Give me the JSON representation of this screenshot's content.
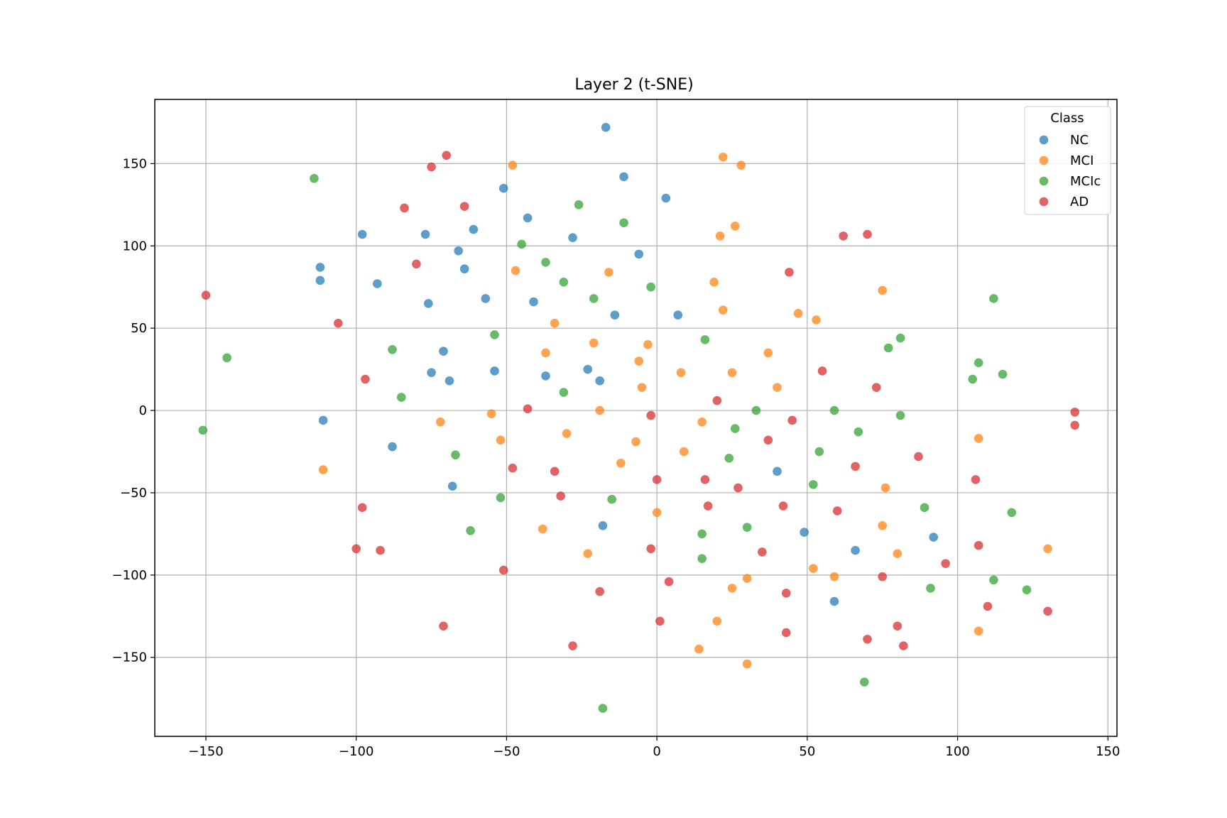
{
  "chart_data": {
    "type": "scatter",
    "title": "Layer 2 (t-SNE)",
    "xlabel": "",
    "ylabel": "",
    "xlim": [
      -167,
      153
    ],
    "ylim": [
      -198,
      189
    ],
    "xticks": [
      -150,
      -100,
      -50,
      0,
      50,
      100,
      150
    ],
    "yticks": [
      -150,
      -100,
      -50,
      0,
      50,
      100,
      150
    ],
    "xtick_labels": [
      "−150",
      "−100",
      "−50",
      "0",
      "50",
      "100",
      "150"
    ],
    "ytick_labels": [
      "−150",
      "−100",
      "−50",
      "0",
      "50",
      "100",
      "150"
    ],
    "grid": true,
    "legend": {
      "title": "Class",
      "placement": "top-right"
    },
    "series": [
      {
        "name": "NC",
        "color": "#1f77b4",
        "points": [
          [
            -17,
            172
          ],
          [
            -11,
            142
          ],
          [
            3,
            129
          ],
          [
            -51,
            135
          ],
          [
            -43,
            117
          ],
          [
            -61,
            110
          ],
          [
            -98,
            107
          ],
          [
            -77,
            107
          ],
          [
            -28,
            105
          ],
          [
            -6,
            95
          ],
          [
            -66,
            97
          ],
          [
            -112,
            87
          ],
          [
            -64,
            86
          ],
          [
            -112,
            79
          ],
          [
            -93,
            77
          ],
          [
            -57,
            68
          ],
          [
            -41,
            66
          ],
          [
            -76,
            65
          ],
          [
            -14,
            58
          ],
          [
            7,
            58
          ],
          [
            -71,
            36
          ],
          [
            -23,
            25
          ],
          [
            -54,
            24
          ],
          [
            -75,
            23
          ],
          [
            -37,
            21
          ],
          [
            -19,
            18
          ],
          [
            -69,
            18
          ],
          [
            -111,
            -6
          ],
          [
            -88,
            -22
          ],
          [
            40,
            -37
          ],
          [
            -68,
            -46
          ],
          [
            -18,
            -70
          ],
          [
            49,
            -74
          ],
          [
            66,
            -85
          ],
          [
            92,
            -77
          ],
          [
            59,
            -116
          ]
        ]
      },
      {
        "name": "MCI",
        "color": "#ff7f0e",
        "points": [
          [
            22,
            154
          ],
          [
            28,
            149
          ],
          [
            -48,
            149
          ],
          [
            26,
            112
          ],
          [
            21,
            106
          ],
          [
            -47,
            85
          ],
          [
            -16,
            84
          ],
          [
            19,
            78
          ],
          [
            75,
            73
          ],
          [
            22,
            61
          ],
          [
            47,
            59
          ],
          [
            53,
            55
          ],
          [
            -34,
            53
          ],
          [
            -21,
            41
          ],
          [
            -3,
            40
          ],
          [
            -37,
            35
          ],
          [
            37,
            35
          ],
          [
            -6,
            30
          ],
          [
            8,
            23
          ],
          [
            25,
            23
          ],
          [
            -5,
            14
          ],
          [
            40,
            14
          ],
          [
            -19,
            0
          ],
          [
            -55,
            -2
          ],
          [
            -72,
            -7
          ],
          [
            15,
            -7
          ],
          [
            -30,
            -14
          ],
          [
            -52,
            -18
          ],
          [
            -7,
            -19
          ],
          [
            107,
            -17
          ],
          [
            9,
            -25
          ],
          [
            -12,
            -32
          ],
          [
            -111,
            -36
          ],
          [
            76,
            -47
          ],
          [
            0,
            -62
          ],
          [
            -38,
            -72
          ],
          [
            75,
            -70
          ],
          [
            130,
            -84
          ],
          [
            80,
            -87
          ],
          [
            -23,
            -87
          ],
          [
            52,
            -96
          ],
          [
            59,
            -101
          ],
          [
            30,
            -102
          ],
          [
            25,
            -108
          ],
          [
            20,
            -128
          ],
          [
            107,
            -134
          ],
          [
            14,
            -145
          ],
          [
            30,
            -154
          ]
        ]
      },
      {
        "name": "MCIc",
        "color": "#2ca02c",
        "points": [
          [
            -114,
            141
          ],
          [
            -26,
            125
          ],
          [
            -11,
            114
          ],
          [
            -45,
            101
          ],
          [
            -37,
            90
          ],
          [
            -31,
            78
          ],
          [
            -2,
            75
          ],
          [
            -21,
            68
          ],
          [
            112,
            68
          ],
          [
            -54,
            46
          ],
          [
            16,
            43
          ],
          [
            81,
            44
          ],
          [
            -88,
            37
          ],
          [
            77,
            38
          ],
          [
            107,
            29
          ],
          [
            115,
            22
          ],
          [
            105,
            19
          ],
          [
            -31,
            11
          ],
          [
            -85,
            8
          ],
          [
            33,
            0
          ],
          [
            59,
            0
          ],
          [
            81,
            -3
          ],
          [
            -151,
            -12
          ],
          [
            26,
            -11
          ],
          [
            67,
            -13
          ],
          [
            -67,
            -27
          ],
          [
            54,
            -25
          ],
          [
            24,
            -29
          ],
          [
            52,
            -45
          ],
          [
            -52,
            -53
          ],
          [
            -15,
            -54
          ],
          [
            89,
            -59
          ],
          [
            118,
            -62
          ],
          [
            30,
            -71
          ],
          [
            -62,
            -73
          ],
          [
            15,
            -75
          ],
          [
            15,
            -90
          ],
          [
            112,
            -103
          ],
          [
            91,
            -108
          ],
          [
            123,
            -109
          ],
          [
            69,
            -165
          ],
          [
            -18,
            -181
          ],
          [
            -143,
            32
          ]
        ]
      },
      {
        "name": "AD",
        "color": "#d62728",
        "points": [
          [
            -70,
            155
          ],
          [
            -75,
            148
          ],
          [
            -64,
            124
          ],
          [
            -84,
            123
          ],
          [
            70,
            107
          ],
          [
            62,
            106
          ],
          [
            -80,
            89
          ],
          [
            44,
            84
          ],
          [
            -150,
            70
          ],
          [
            -106,
            53
          ],
          [
            55,
            24
          ],
          [
            -97,
            19
          ],
          [
            73,
            14
          ],
          [
            20,
            6
          ],
          [
            -43,
            1
          ],
          [
            -2,
            -3
          ],
          [
            45,
            -6
          ],
          [
            139,
            -1
          ],
          [
            139,
            -9
          ],
          [
            37,
            -18
          ],
          [
            87,
            -28
          ],
          [
            66,
            -34
          ],
          [
            -48,
            -35
          ],
          [
            -34,
            -37
          ],
          [
            106,
            -42
          ],
          [
            0,
            -42
          ],
          [
            16,
            -42
          ],
          [
            27,
            -47
          ],
          [
            -32,
            -52
          ],
          [
            17,
            -58
          ],
          [
            42,
            -58
          ],
          [
            -98,
            -59
          ],
          [
            60,
            -61
          ],
          [
            107,
            -82
          ],
          [
            -100,
            -84
          ],
          [
            -92,
            -85
          ],
          [
            -2,
            -84
          ],
          [
            35,
            -86
          ],
          [
            96,
            -93
          ],
          [
            -51,
            -97
          ],
          [
            75,
            -101
          ],
          [
            4,
            -104
          ],
          [
            -19,
            -110
          ],
          [
            43,
            -111
          ],
          [
            110,
            -119
          ],
          [
            130,
            -122
          ],
          [
            1,
            -128
          ],
          [
            80,
            -131
          ],
          [
            -71,
            -131
          ],
          [
            43,
            -135
          ],
          [
            70,
            -139
          ],
          [
            82,
            -143
          ],
          [
            -28,
            -143
          ]
        ]
      }
    ]
  }
}
